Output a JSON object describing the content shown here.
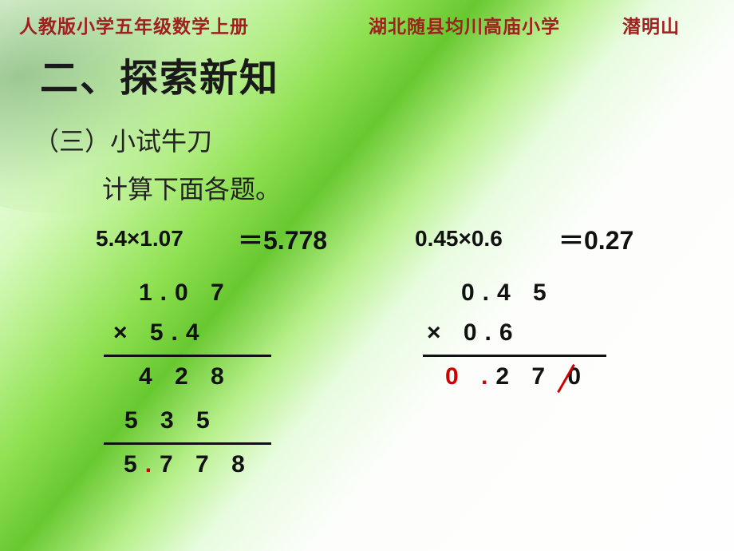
{
  "header": {
    "left": "人教版小学五年级数学上册",
    "school": "湖北随县均川高庙小学",
    "teacher": "潜明山",
    "color": "#a02020",
    "fontsize": 23
  },
  "section_title": {
    "text": "二、探索新知",
    "fontsize": 48,
    "color": "#1a1a1a"
  },
  "subsection": {
    "text": "（三）小试牛刀",
    "fontsize": 32
  },
  "instruction": {
    "text": "计算下面各题。",
    "fontsize": 32
  },
  "problems": [
    {
      "expression": "5.4×1.07",
      "answer": "＝5.778",
      "vertical": {
        "line1": "1.0 7",
        "line2": "×  5.4",
        "partial1": "4 2 8",
        "partial2": "5 3 5",
        "result_before_dot": "5",
        "result_dot": ".",
        "result_after_dot": "7 7 8",
        "dot_color": "#d00000"
      }
    },
    {
      "expression": "0.45×0.6",
      "answer": "＝0.27",
      "vertical": {
        "line1": "0.4 5",
        "line2": "×   0.6",
        "result_leading": "0 ",
        "result_dot": ".",
        "result_mid": "2 7 ",
        "result_strike": "0",
        "leading_color": "#d00000",
        "dot_color": "#d00000",
        "strike_color": "#d00000"
      }
    }
  ],
  "styling": {
    "background_gradient": [
      "#f5fef4",
      "#d8fac0",
      "#68c830",
      "#fdfefc"
    ],
    "bar_color": "#111111",
    "text_color": "#111111",
    "calc_fontsize": 30,
    "calc_letter_spacing": 10,
    "eq_fontsize_lhs": 28,
    "eq_fontsize_ans": 32
  },
  "type": "math-slide"
}
